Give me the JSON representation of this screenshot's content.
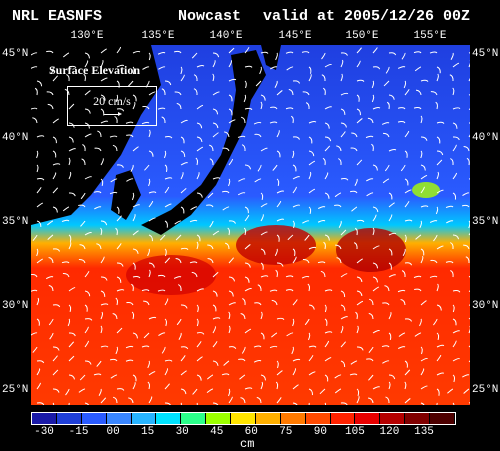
{
  "header": {
    "source": "NRL EASNFS",
    "type": "Nowcast",
    "valid": "valid at 2005/12/26 00Z"
  },
  "map": {
    "field_label": "Surface Elevation",
    "vector_scale_label": "20 cm/s",
    "lon_labels": [
      "130°E",
      "135°E",
      "140°E",
      "145°E",
      "150°E",
      "155°E"
    ],
    "lat_labels_left": [
      "45°N",
      "40°N",
      "35°N",
      "30°N",
      "25°N"
    ],
    "lat_labels_right": [
      "45°N",
      "40°N",
      "35°N",
      "30°N",
      "25°N"
    ],
    "colors": {
      "ocean_cold": "#1f3fe0",
      "ocean_mid": "#00d0ff",
      "ocean_warm": "#ff2a00",
      "land": "#000000"
    }
  },
  "colorbar": {
    "tick_labels": [
      "-30",
      "-15",
      "00",
      "15",
      "30",
      "45",
      "60",
      "75",
      "90",
      "105",
      "120",
      "135"
    ],
    "unit": "cm",
    "colors": [
      "#1a1aa8",
      "#1f3fd8",
      "#2a5bff",
      "#3a86ff",
      "#27b4ff",
      "#00e3ff",
      "#2bff8a",
      "#9cff00",
      "#ffe400",
      "#ffb000",
      "#ff7a00",
      "#ff4a00",
      "#ff2200",
      "#e80000",
      "#b40000",
      "#800000",
      "#4d0000"
    ]
  }
}
